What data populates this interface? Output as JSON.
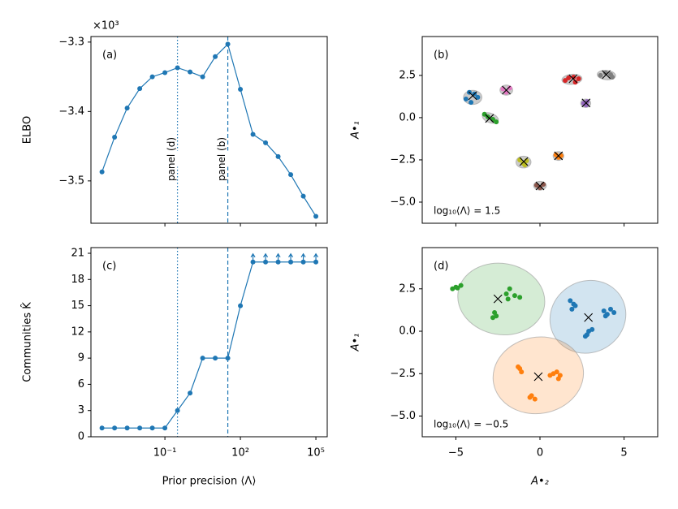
{
  "chart_data": [
    {
      "type": "line",
      "panel_label": "(a)",
      "ylabel": "ELBO",
      "offset_text": "×10³",
      "x": [
        0.000316,
        0.001,
        0.00316,
        0.01,
        0.0316,
        0.1,
        0.316,
        1,
        3.16,
        10,
        31.6,
        100,
        316,
        1000,
        3160,
        10000,
        31600,
        100000
      ],
      "values": [
        -3.487,
        -3.437,
        -3.395,
        -3.367,
        -3.35,
        -3.344,
        -3.337,
        -3.343,
        -3.35,
        -3.321,
        -3.303,
        -3.368,
        -3.433,
        -3.445,
        -3.465,
        -3.491,
        -3.522,
        -3.551
      ],
      "color": "#1f77b4",
      "log_x": true,
      "show_xtick_labels": false,
      "xlim": [
        0.000115,
        282000
      ],
      "xticks": [
        0.1,
        100,
        100000
      ],
      "ylim": [
        -3.561,
        -3.292
      ],
      "yticks": [
        {
          "value": -3.3,
          "label": "−3.3"
        },
        {
          "value": -3.4,
          "label": "−3.4"
        },
        {
          "value": -3.5,
          "label": "−3.5"
        }
      ],
      "vlines": [
        {
          "value": 0.316,
          "style": "dotted",
          "label": "panel (d)"
        },
        {
          "value": 31.6,
          "style": "dashed",
          "label": "panel (b)"
        }
      ]
    },
    {
      "type": "scatter",
      "panel_label": "(b)",
      "ylabel": "A•₁",
      "annotation": "log₁₀⟨Λ⟩ = 1.5",
      "show_xtick_labels": false,
      "xlim": [
        -7,
        7
      ],
      "xticks": [
        -5,
        0,
        5
      ],
      "ylim": [
        -6.25,
        4.8
      ],
      "yticks": [
        {
          "value": 2.5,
          "label": "2.5"
        },
        {
          "value": 0,
          "label": "0.0"
        },
        {
          "value": -2.5,
          "label": "−2.5"
        },
        {
          "value": -5,
          "label": "−5.0"
        }
      ],
      "ellipse_color": "#8c8c8c",
      "ellipse_opacity": 0.45,
      "series": [
        {
          "color": "#1f77b4",
          "x": [
            -4.4,
            -4.2,
            -3.9,
            -3.7,
            -4.1
          ],
          "values": [
            1.1,
            1.5,
            1.4,
            1.2,
            0.9
          ],
          "center": [
            -4,
            1.3
          ],
          "ellipse": {
            "cx": -4,
            "cy": 1.2,
            "rx": 0.55,
            "ry": 0.42,
            "angle": 0
          }
        },
        {
          "color": "#2ca02c",
          "x": [
            -3.3,
            -3.1,
            -2.8,
            -2.6
          ],
          "values": [
            0.2,
            0.05,
            -0.1,
            -0.25
          ],
          "center": [
            -3,
            -0.05
          ],
          "ellipse": {
            "cx": -2.95,
            "cy": -0.02,
            "rx": 0.5,
            "ry": 0.28,
            "angle": -20
          }
        },
        {
          "color": "#e377c2",
          "x": [
            -2.2,
            -2.0,
            -1.8
          ],
          "values": [
            1.7,
            1.5,
            1.75
          ],
          "center": [
            -2,
            1.63
          ],
          "ellipse": {
            "cx": -2,
            "cy": 1.63,
            "rx": 0.38,
            "ry": 0.3,
            "angle": 0
          }
        },
        {
          "color": "#d62728",
          "x": [
            1.5,
            1.7,
            2.0,
            2.3,
            2.1
          ],
          "values": [
            2.2,
            2.35,
            2.4,
            2.3,
            2.1
          ],
          "center": [
            1.97,
            2.3
          ],
          "ellipse": {
            "cx": 1.9,
            "cy": 2.27,
            "rx": 0.6,
            "ry": 0.3,
            "angle": 5
          }
        },
        {
          "color": "#7f7f7f",
          "x": [
            3.6,
            3.9,
            4.2,
            4.3
          ],
          "values": [
            2.5,
            2.65,
            2.55,
            2.4
          ],
          "center": [
            3.94,
            2.55
          ],
          "ellipse": {
            "cx": 3.95,
            "cy": 2.52,
            "rx": 0.55,
            "ry": 0.28,
            "angle": -5
          }
        },
        {
          "color": "#9467bd",
          "x": [
            2.6,
            2.8,
            2.75
          ],
          "values": [
            0.85,
            0.95,
            0.75
          ],
          "center": [
            2.74,
            0.87
          ],
          "ellipse": {
            "cx": 2.72,
            "cy": 0.85,
            "rx": 0.3,
            "ry": 0.25,
            "angle": 0
          }
        },
        {
          "color": "#bcbd22",
          "x": [
            -1.2,
            -1.0,
            -0.8,
            -0.9
          ],
          "values": [
            -2.5,
            -2.7,
            -2.55,
            -2.8
          ],
          "center": [
            -0.96,
            -2.6
          ],
          "ellipse": {
            "cx": -0.98,
            "cy": -2.63,
            "rx": 0.45,
            "ry": 0.35,
            "angle": 0
          }
        },
        {
          "color": "#ff7f0e",
          "x": [
            0.95,
            1.1,
            1.25
          ],
          "values": [
            -2.2,
            -2.35,
            -2.25
          ],
          "center": [
            1.1,
            -2.26
          ],
          "ellipse": {
            "cx": 1.1,
            "cy": -2.27,
            "rx": 0.32,
            "ry": 0.26,
            "angle": 0
          }
        },
        {
          "color": "#8c564b",
          "x": [
            -0.2,
            0.0,
            0.2
          ],
          "values": [
            -4.0,
            -4.15,
            -3.95
          ],
          "center": [
            0,
            -4.04
          ],
          "ellipse": {
            "cx": 0,
            "cy": -4.03,
            "rx": 0.38,
            "ry": 0.26,
            "angle": 0
          }
        }
      ]
    },
    {
      "type": "line",
      "panel_label": "(c)",
      "ylabel": "Communities K̂",
      "xlabel": "Prior precision ⟨Λ⟩",
      "x": [
        0.000316,
        0.001,
        0.00316,
        0.01,
        0.0316,
        0.1,
        0.316,
        1,
        3.16,
        10,
        31.6,
        100,
        316,
        1000,
        3160,
        10000,
        31600,
        100000
      ],
      "values": [
        1,
        1,
        1,
        1,
        1,
        1,
        3,
        5,
        9,
        9,
        9,
        15,
        20,
        20,
        20,
        20,
        20,
        20
      ],
      "censored": [
        false,
        false,
        false,
        false,
        false,
        false,
        false,
        false,
        false,
        false,
        false,
        false,
        true,
        true,
        true,
        true,
        true,
        true
      ],
      "color": "#1f77b4",
      "log_x": true,
      "show_xtick_labels": true,
      "xlim": [
        0.000115,
        282000
      ],
      "xticks": [
        {
          "value": 0.1,
          "label": "10⁻¹"
        },
        {
          "value": 100,
          "label": "10²"
        },
        {
          "value": 100000,
          "label": "10⁵"
        }
      ],
      "ylim": [
        0,
        21.65
      ],
      "yticks": [
        0,
        3,
        6,
        9,
        12,
        15,
        18,
        21
      ],
      "vlines": [
        {
          "value": 0.316,
          "style": "dotted"
        },
        {
          "value": 31.6,
          "style": "dashed"
        }
      ]
    },
    {
      "type": "scatter",
      "panel_label": "(d)",
      "ylabel": "A•₁",
      "xlabel": "A•₂",
      "annotation": "log₁₀⟨Λ⟩ = −0.5",
      "show_xtick_labels": true,
      "xlim": [
        -7,
        7
      ],
      "xticks": [
        {
          "value": -5,
          "label": "−5"
        },
        0,
        5
      ],
      "ylim": [
        -6.22,
        4.93
      ],
      "yticks": [
        {
          "value": 2.5,
          "label": "2.5"
        },
        {
          "value": 0,
          "label": "0.0"
        },
        {
          "value": -2.5,
          "label": "−2.5"
        },
        {
          "value": -5,
          "label": "−5.0"
        }
      ],
      "ellipse_color": "series",
      "ellipse_opacity": 0.2,
      "series": [
        {
          "color": "#2ca02c",
          "x": [
            -5.2,
            -5.0,
            -4.7,
            -4.9,
            -2.0,
            -1.8,
            -1.5,
            -1.2,
            -1.9,
            -2.7,
            -2.6,
            -2.8
          ],
          "values": [
            2.5,
            2.6,
            2.7,
            2.55,
            2.2,
            2.5,
            2.1,
            2.0,
            1.9,
            1.1,
            0.9,
            0.8
          ],
          "center": [
            -2.5,
            1.91
          ],
          "ellipse": {
            "cx": -2.3,
            "cy": 1.9,
            "rx": 2.6,
            "ry": 2.1,
            "angle": -10
          }
        },
        {
          "color": "#1f77b4",
          "x": [
            1.8,
            2.0,
            1.9,
            2.1,
            3.8,
            4.0,
            4.2,
            4.4,
            3.9,
            2.9,
            3.1,
            2.8,
            2.7
          ],
          "values": [
            1.8,
            1.6,
            1.3,
            1.5,
            1.2,
            1.0,
            1.3,
            1.1,
            0.9,
            0.0,
            0.1,
            -0.2,
            -0.3
          ],
          "center": [
            2.88,
            0.81
          ],
          "ellipse": {
            "cx": 2.85,
            "cy": 0.85,
            "rx": 2.3,
            "ry": 2.1,
            "angle": 30
          }
        },
        {
          "color": "#ff7f0e",
          "x": [
            -1.2,
            -1.1,
            -1.3,
            0.8,
            1.0,
            1.2,
            0.6,
            1.1,
            -0.5,
            -0.3,
            -0.6
          ],
          "values": [
            -2.2,
            -2.4,
            -2.1,
            -2.5,
            -2.4,
            -2.6,
            -2.6,
            -2.8,
            -3.8,
            -4.0,
            -3.9
          ],
          "center": [
            -0.1,
            -2.68
          ],
          "ellipse": {
            "cx": -0.1,
            "cy": -2.6,
            "rx": 2.7,
            "ry": 2.25,
            "angle": 10
          }
        }
      ]
    }
  ]
}
